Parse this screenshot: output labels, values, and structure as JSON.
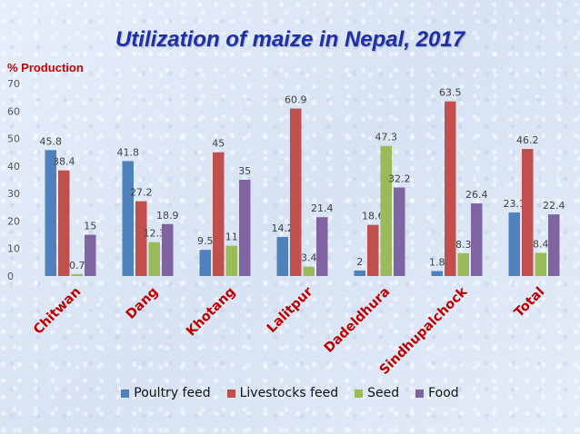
{
  "chart_data": {
    "type": "bar",
    "title": "Utilization of maize in Nepal, 2017",
    "ylabel": "% Production",
    "xlabel": "",
    "ylim": [
      0,
      70
    ],
    "yticks": [
      0,
      10,
      20,
      30,
      40,
      50,
      60,
      70
    ],
    "grid": false,
    "legend_position": "bottom",
    "categories": [
      "Chitwan",
      "Dang",
      "Khotang",
      "Lalitpur",
      "Dadeldhura",
      "Sindhupalchock",
      "Total"
    ],
    "series": [
      {
        "name": "Poultry feed",
        "color": "#4f81bd",
        "values": [
          45.8,
          41.8,
          9.5,
          14.2,
          2,
          1.8,
          23.1
        ]
      },
      {
        "name": "Livestocks feed",
        "color": "#c0504d",
        "values": [
          38.4,
          27.2,
          45,
          60.9,
          18.6,
          63.5,
          46.2
        ]
      },
      {
        "name": "Seed",
        "color": "#9bbb59",
        "values": [
          0.7,
          12.3,
          11,
          3.4,
          47.3,
          8.3,
          8.4
        ]
      },
      {
        "name": "Food",
        "color": "#8064a2",
        "values": [
          15,
          18.9,
          35,
          21.4,
          32.2,
          26.4,
          22.4
        ]
      }
    ]
  }
}
